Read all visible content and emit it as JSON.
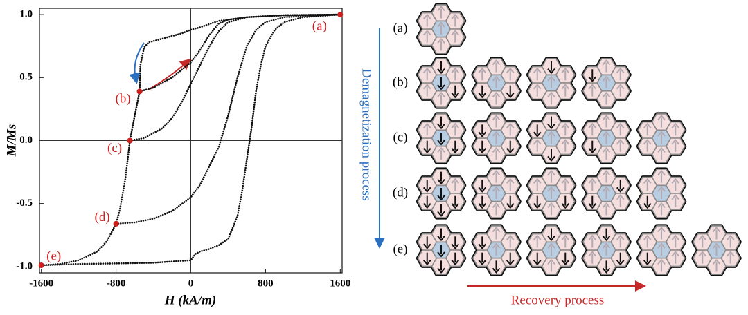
{
  "chart_data": {
    "type": "scatter",
    "x_label": "H (kA/m)",
    "y_label": "M/Ms",
    "xlim": [
      -1620,
      1620
    ],
    "ylim": [
      -1.05,
      1.05
    ],
    "xticks": [
      -1600,
      -800,
      0,
      800,
      1600
    ],
    "yticks": [
      {
        "value": 1.0,
        "label": "1.0"
      },
      0.5,
      {
        "value": 0,
        "label": "0.0"
      },
      -0.5,
      {
        "value": -1.0,
        "label": "-1.0"
      }
    ],
    "zero_lines": true,
    "series": [
      {
        "color": "#111111",
        "x": [
          1600,
          1000,
          600,
          300,
          100,
          0,
          -100,
          -200,
          -350,
          -450,
          -500,
          -540,
          -548,
          -600,
          -652,
          -700,
          -760,
          -800,
          -900,
          -1000,
          -1200,
          -1400,
          -1600
        ],
        "values": [
          1.0,
          0.995,
          0.98,
          0.95,
          0.9,
          0.88,
          0.85,
          0.83,
          0.8,
          0.78,
          0.74,
          0.6,
          0.39,
          0.2,
          0,
          -0.3,
          -0.55,
          -0.66,
          -0.8,
          -0.88,
          -0.95,
          -0.98,
          -0.99
        ]
      },
      {
        "color": "#111111",
        "x": [
          -1600,
          -1200,
          -800,
          -400,
          0,
          50,
          100,
          200,
          300,
          400,
          500,
          550,
          600,
          650,
          700,
          750,
          800,
          900,
          1000,
          1200,
          1600
        ],
        "values": [
          -0.99,
          -0.98,
          -0.975,
          -0.97,
          -0.95,
          -0.9,
          -0.88,
          -0.86,
          -0.83,
          -0.78,
          -0.6,
          -0.4,
          -0.15,
          0.1,
          0.4,
          0.6,
          0.75,
          0.88,
          0.94,
          0.98,
          1.0
        ]
      },
      {
        "color": "#111111",
        "x": [
          -800,
          -600,
          -400,
          -200,
          0,
          100,
          200,
          300,
          400,
          500,
          600,
          700,
          800,
          1000,
          1600
        ],
        "values": [
          -0.66,
          -0.65,
          -0.62,
          -0.56,
          -0.45,
          -0.35,
          -0.2,
          -0.05,
          0.2,
          0.5,
          0.75,
          0.88,
          0.94,
          0.98,
          1.0
        ]
      },
      {
        "color": "#111111",
        "x": [
          -652,
          -500,
          -300,
          -200,
          -100,
          0,
          100,
          200,
          300,
          400,
          600,
          1000,
          1600
        ],
        "values": [
          0,
          0.02,
          0.1,
          0.18,
          0.3,
          0.45,
          0.6,
          0.75,
          0.87,
          0.94,
          0.98,
          0.995,
          1.0
        ]
      },
      {
        "color": "#111111",
        "x": [
          -548,
          -400,
          -200,
          0,
          100,
          200,
          300,
          400,
          600,
          1000,
          1600
        ],
        "values": [
          0.39,
          0.42,
          0.5,
          0.62,
          0.72,
          0.84,
          0.93,
          0.96,
          0.98,
          0.995,
          1.0
        ]
      }
    ],
    "points": {
      "color": "#cc1f1f",
      "labels": [
        "(a)",
        "(b)",
        "(c)",
        "(d)",
        "(e)"
      ],
      "x": [
        1600,
        -548,
        -652,
        -800,
        -1600
      ],
      "values": [
        1.0,
        0.39,
        0,
        -0.66,
        -0.99
      ]
    }
  },
  "diagram": {
    "rows": [
      "(a)",
      "(b)",
      "(c)",
      "(d)",
      "(e)"
    ],
    "demagnetization": "Demagnetization process",
    "recovery": "Recovery process"
  }
}
